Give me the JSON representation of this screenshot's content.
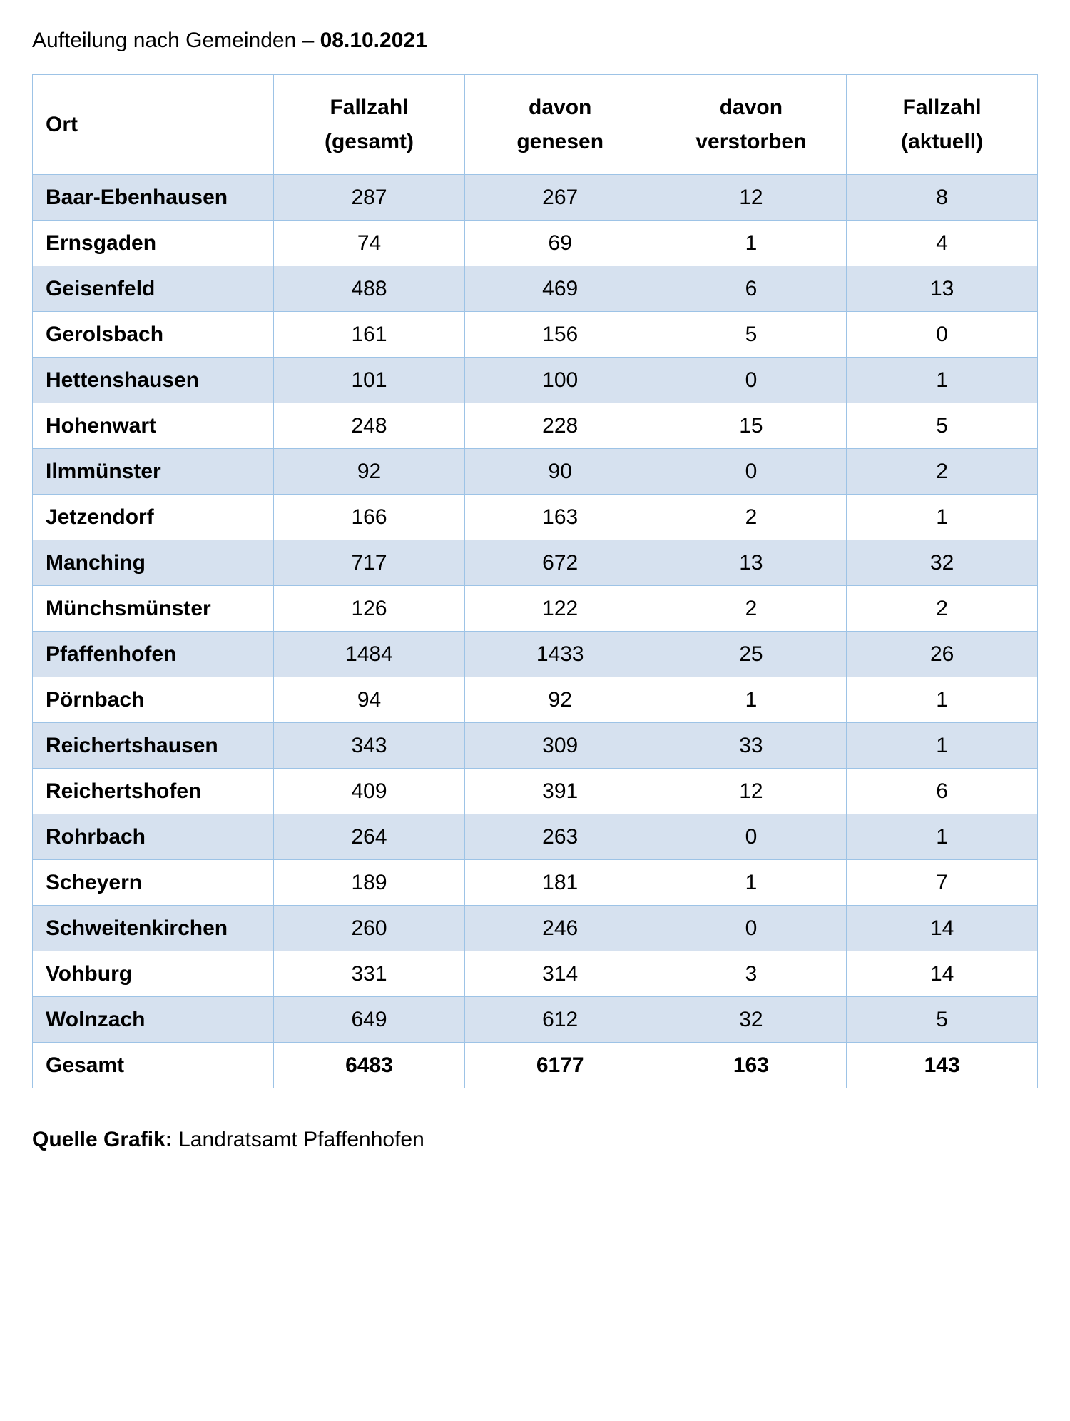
{
  "title": {
    "prefix": "Aufteilung nach Gemeinden – ",
    "date": "08.10.2021"
  },
  "table": {
    "type": "table",
    "background_color": "#ffffff",
    "grid_color": "#9dc3e6",
    "header_text_color": "#000000",
    "body_text_color": "#000000",
    "row_even_bg": "#d6e1ef",
    "row_odd_bg": "#ffffff",
    "header_fontsize": 30,
    "body_fontsize": 30,
    "columns": [
      {
        "key": "ort",
        "line1": "",
        "line2": "Ort",
        "align": "left",
        "width_pct": 24
      },
      {
        "key": "gesamt",
        "line1": "Fallzahl",
        "line2": "(gesamt)",
        "align": "center",
        "width_pct": 19
      },
      {
        "key": "genesen",
        "line1": "davon",
        "line2": "genesen",
        "align": "center",
        "width_pct": 19
      },
      {
        "key": "verstorben",
        "line1": "davon",
        "line2": "verstorben",
        "align": "center",
        "width_pct": 19
      },
      {
        "key": "aktuell",
        "line1": "Fallzahl",
        "line2": "(aktuell)",
        "align": "center",
        "width_pct": 19
      }
    ],
    "rows": [
      {
        "ort": "Baar-Ebenhausen",
        "gesamt": "287",
        "genesen": "267",
        "verstorben": "12",
        "aktuell": "8"
      },
      {
        "ort": "Ernsgaden",
        "gesamt": "74",
        "genesen": "69",
        "verstorben": "1",
        "aktuell": "4"
      },
      {
        "ort": "Geisenfeld",
        "gesamt": "488",
        "genesen": "469",
        "verstorben": "6",
        "aktuell": "13"
      },
      {
        "ort": "Gerolsbach",
        "gesamt": "161",
        "genesen": "156",
        "verstorben": "5",
        "aktuell": "0"
      },
      {
        "ort": "Hettenshausen",
        "gesamt": "101",
        "genesen": "100",
        "verstorben": "0",
        "aktuell": "1"
      },
      {
        "ort": "Hohenwart",
        "gesamt": "248",
        "genesen": "228",
        "verstorben": "15",
        "aktuell": "5"
      },
      {
        "ort": "Ilmmünster",
        "gesamt": "92",
        "genesen": "90",
        "verstorben": "0",
        "aktuell": "2"
      },
      {
        "ort": "Jetzendorf",
        "gesamt": "166",
        "genesen": "163",
        "verstorben": "2",
        "aktuell": "1"
      },
      {
        "ort": "Manching",
        "gesamt": "717",
        "genesen": "672",
        "verstorben": "13",
        "aktuell": "32"
      },
      {
        "ort": "Münchsmünster",
        "gesamt": "126",
        "genesen": "122",
        "verstorben": "2",
        "aktuell": "2"
      },
      {
        "ort": "Pfaffenhofen",
        "gesamt": "1484",
        "genesen": "1433",
        "verstorben": "25",
        "aktuell": "26"
      },
      {
        "ort": "Pörnbach",
        "gesamt": "94",
        "genesen": "92",
        "verstorben": "1",
        "aktuell": "1"
      },
      {
        "ort": "Reichertshausen",
        "gesamt": "343",
        "genesen": "309",
        "verstorben": "33",
        "aktuell": "1"
      },
      {
        "ort": "Reichertshofen",
        "gesamt": "409",
        "genesen": "391",
        "verstorben": "12",
        "aktuell": "6"
      },
      {
        "ort": "Rohrbach",
        "gesamt": "264",
        "genesen": "263",
        "verstorben": "0",
        "aktuell": "1"
      },
      {
        "ort": "Scheyern",
        "gesamt": "189",
        "genesen": "181",
        "verstorben": "1",
        "aktuell": "7"
      },
      {
        "ort": "Schweitenkirchen",
        "gesamt": "260",
        "genesen": "246",
        "verstorben": "0",
        "aktuell": "14"
      },
      {
        "ort": "Vohburg",
        "gesamt": "331",
        "genesen": "314",
        "verstorben": "3",
        "aktuell": "14"
      },
      {
        "ort": "Wolnzach",
        "gesamt": "649",
        "genesen": "612",
        "verstorben": "32",
        "aktuell": "5"
      }
    ],
    "total": {
      "ort": "Gesamt",
      "gesamt": "6483",
      "genesen": "6177",
      "verstorben": "163",
      "aktuell": "143"
    }
  },
  "footer": {
    "label": "Quelle Grafik:",
    "value": "Landratsamt Pfaffenhofen"
  }
}
